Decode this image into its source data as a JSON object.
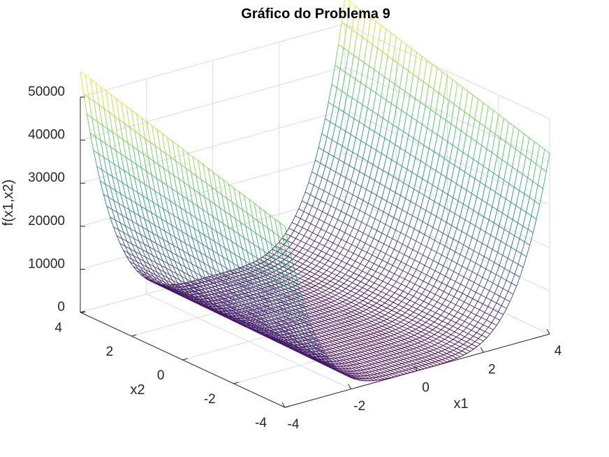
{
  "chart_data": {
    "type": "surface",
    "title": "Gráfico do Problema 9",
    "xlabel": "x1",
    "ylabel": "x2",
    "zlabel": "f(x1,x2)",
    "xlim": [
      -4,
      4
    ],
    "ylim": [
      -4,
      4
    ],
    "zlim": [
      0,
      50000
    ],
    "x_ticks": [
      -4,
      -2,
      0,
      2,
      4
    ],
    "y_ticks": [
      -4,
      -2,
      0,
      2,
      4
    ],
    "z_ticks": [
      0,
      10000,
      20000,
      30000,
      40000,
      50000
    ],
    "grid": true,
    "colormap": "viridis",
    "colormap_stops": [
      "#440154",
      "#3b528b",
      "#21918c",
      "#5ec962",
      "#fde725"
    ],
    "surface_model": "f is nearly independent of x2 and grows steeply with |x1|: f ≈ 42000·(x1/4)^4 at x2=-4 rising to ≈ 56000·(x1/4)^4 at x2=4; minimum ≈ 0 along x1 = 0",
    "sample_values": {
      "x1": [
        -4,
        -3,
        -2,
        -1,
        0,
        1,
        2,
        3,
        4
      ],
      "x2_-4": [
        42000,
        13300,
        2600,
        160,
        0,
        160,
        2600,
        13300,
        42000
      ],
      "x2_4": [
        56000,
        17700,
        3500,
        220,
        0,
        220,
        3500,
        17700,
        56000
      ]
    }
  }
}
